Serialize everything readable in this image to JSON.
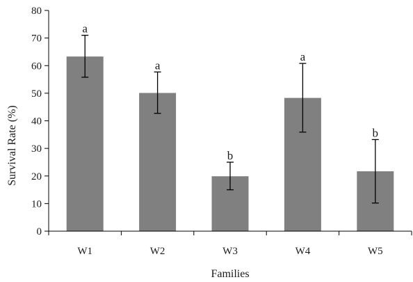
{
  "chart_data": {
    "type": "bar",
    "categories": [
      "W1",
      "W2",
      "W3",
      "W4",
      "W5"
    ],
    "values": [
      63.3,
      50.1,
      19.9,
      48.3,
      21.7
    ],
    "error_upper": [
      71.0,
      57.7,
      25.0,
      60.8,
      33.2
    ],
    "error_lower": [
      55.8,
      42.7,
      15.0,
      35.9,
      10.2
    ],
    "significance": [
      "a",
      "a",
      "b",
      "a",
      "b"
    ],
    "xlabel": "Families",
    "ylabel": "Survival Rate (%)",
    "ylim": [
      0,
      80
    ],
    "yticks": [
      0,
      10,
      20,
      30,
      40,
      50,
      60,
      70,
      80
    ],
    "grid": false,
    "bar_color": "#808080",
    "axis_color": "#000000"
  }
}
